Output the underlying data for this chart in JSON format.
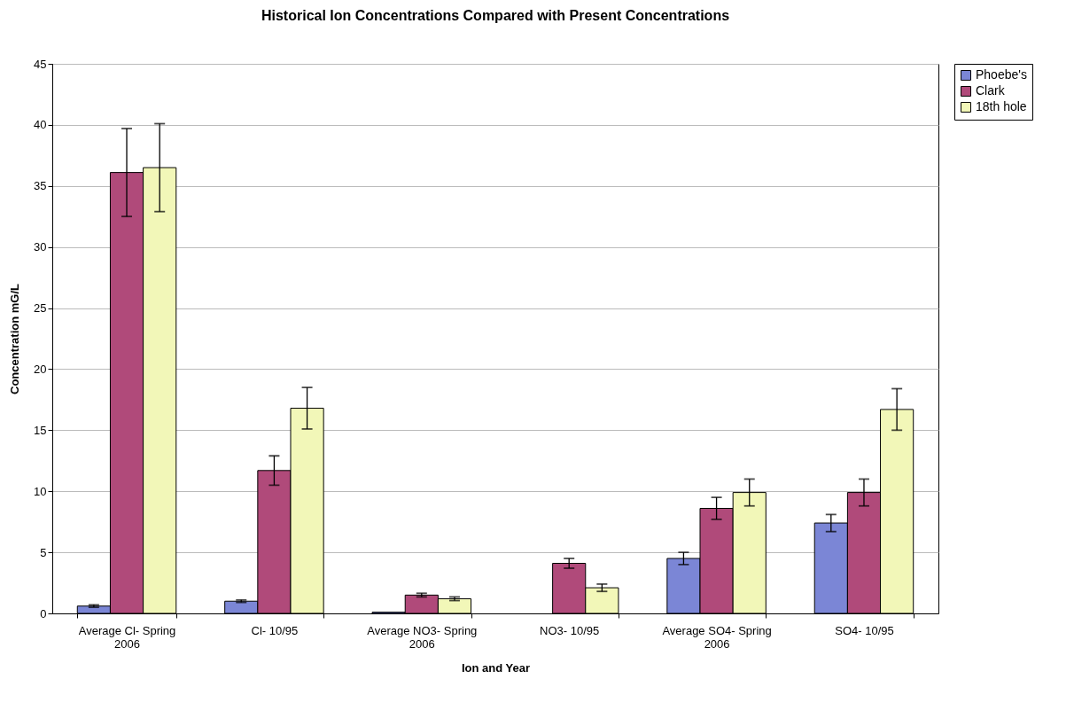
{
  "chart_data": {
    "type": "bar",
    "title": "Historical Ion Concentrations Compared with Present Concentrations",
    "xlabel": "Ion and Year",
    "ylabel": "Concentration mG/L",
    "categories": [
      "Average Cl- Spring 2006",
      "Cl- 10/95",
      "Average NO3- Spring 2006",
      "NO3- 10/95",
      "Average SO4- Spring 2006",
      "SO4- 10/95"
    ],
    "series": [
      {
        "name": "Phoebe's",
        "color": "#7b86d6",
        "values": [
          0.6,
          1.0,
          0.1,
          null,
          4.5,
          7.4
        ],
        "errors": [
          0.1,
          0.1,
          null,
          null,
          0.5,
          0.7
        ]
      },
      {
        "name": "Clark",
        "color": "#b04a7a",
        "values": [
          36.1,
          11.7,
          1.5,
          4.1,
          8.6,
          9.9
        ],
        "errors": [
          3.6,
          1.2,
          0.15,
          0.4,
          0.9,
          1.1
        ]
      },
      {
        "name": "18th hole",
        "color": "#f2f7b8",
        "values": [
          36.5,
          16.8,
          1.2,
          2.1,
          9.9,
          16.7
        ],
        "errors": [
          3.6,
          1.7,
          0.15,
          0.3,
          1.1,
          1.7
        ]
      }
    ],
    "ylim": [
      0,
      45
    ],
    "yticks": [
      0,
      5,
      10,
      15,
      20,
      25,
      30,
      35,
      40,
      45
    ],
    "grid": "y",
    "legend": "right"
  }
}
